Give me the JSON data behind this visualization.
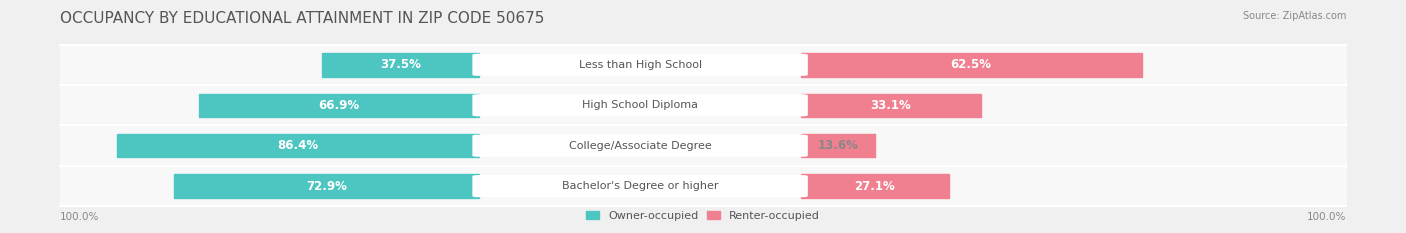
{
  "title": "OCCUPANCY BY EDUCATIONAL ATTAINMENT IN ZIP CODE 50675",
  "source": "Source: ZipAtlas.com",
  "categories": [
    "Less than High School",
    "High School Diploma",
    "College/Associate Degree",
    "Bachelor's Degree or higher"
  ],
  "owner_values": [
    37.5,
    66.9,
    86.4,
    72.9
  ],
  "renter_values": [
    62.5,
    33.1,
    13.6,
    27.1
  ],
  "owner_color": "#4DC5C0",
  "renter_color": "#F08090",
  "background_color": "#f0f0f0",
  "row_bg_color": "#f8f8f8",
  "title_fontsize": 11,
  "label_fontsize": 8.5,
  "axis_label_fontsize": 7.5,
  "legend_fontsize": 8,
  "source_fontsize": 7
}
